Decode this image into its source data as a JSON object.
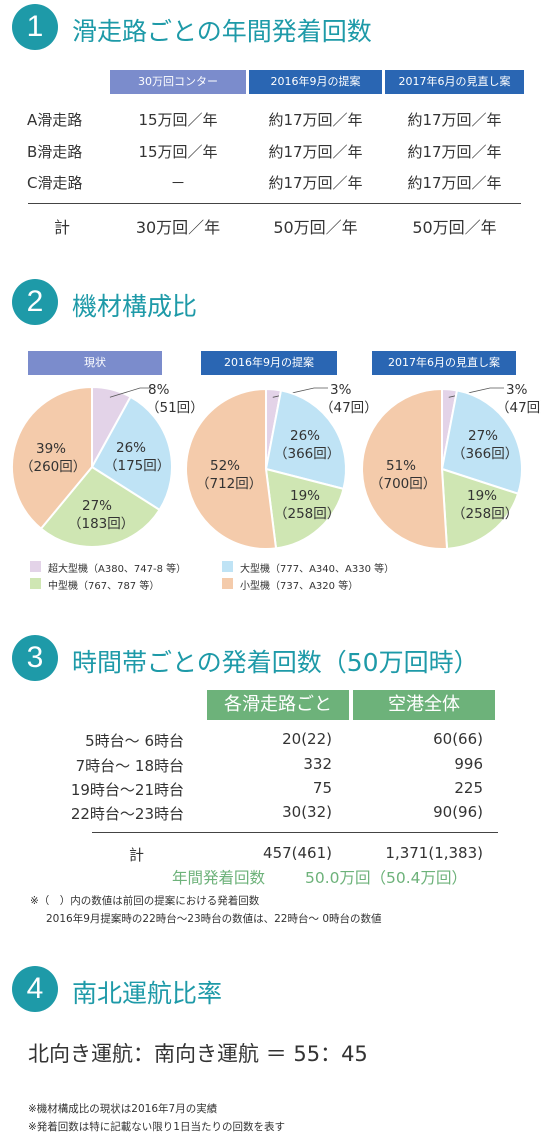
{
  "section1": {
    "number": "1",
    "title": "滑走路ごとの年間発着回数",
    "headers": [
      "30万回コンター",
      "2016年9月の提案",
      "2017年6月の見直し案"
    ],
    "rows": [
      {
        "label": "A滑走路",
        "values": [
          "15万回／年",
          "約17万回／年",
          "約17万回／年"
        ]
      },
      {
        "label": "B滑走路",
        "values": [
          "15万回／年",
          "約17万回／年",
          "約17万回／年"
        ]
      },
      {
        "label": "C滑走路",
        "values": [
          "－",
          "約17万回／年",
          "約17万回／年"
        ]
      }
    ],
    "total": {
      "label": "計",
      "values": [
        "30万回／年",
        "50万回／年",
        "50万回／年"
      ]
    }
  },
  "section2": {
    "number": "2",
    "title": "機材構成比",
    "headers": [
      "現状",
      "2016年9月の提案",
      "2017年6月の見直し案"
    ],
    "legend": [
      {
        "label": "超大型機（A380、747-8 等）",
        "color": "#e3d3e8"
      },
      {
        "label": "大型機（777、A340、A330 等）",
        "color": "#bfe3f5"
      },
      {
        "label": "中型機（767、787 等）",
        "color": "#cfe6b3"
      },
      {
        "label": "小型機（737、A320 等）",
        "color": "#f4cbab"
      }
    ]
  },
  "chart_data": [
    {
      "type": "pie",
      "title": "現状",
      "categories": [
        "超大型機",
        "大型機",
        "中型機",
        "小型機"
      ],
      "values": [
        8,
        26,
        27,
        39
      ],
      "counts": [
        "51回",
        "175回",
        "183回",
        "260回"
      ],
      "labels": [
        "8%",
        "26%",
        "27%",
        "39%"
      ]
    },
    {
      "type": "pie",
      "title": "2016年9月の提案",
      "categories": [
        "超大型機",
        "大型機",
        "中型機",
        "小型機"
      ],
      "values": [
        3,
        26,
        19,
        52
      ],
      "counts": [
        "47回",
        "366回",
        "258回",
        "712回"
      ],
      "labels": [
        "3%",
        "26%",
        "19%",
        "52%"
      ]
    },
    {
      "type": "pie",
      "title": "2017年6月の見直し案",
      "categories": [
        "超大型機",
        "大型機",
        "中型機",
        "小型機"
      ],
      "values": [
        3,
        27,
        19,
        51
      ],
      "counts": [
        "47回",
        "366回",
        "258回",
        "700回"
      ],
      "labels": [
        "3%",
        "27%",
        "19%",
        "51%"
      ]
    }
  ],
  "section3": {
    "number": "3",
    "title": "時間帯ごとの発着回数（50万回時）",
    "headers": [
      "各滑走路ごと",
      "空港全体"
    ],
    "rows": [
      {
        "label": "5時台～ 6時台",
        "values": [
          "20(22)",
          "60(66)"
        ]
      },
      {
        "label": "7時台～ 18時台",
        "values": [
          "332",
          "996"
        ]
      },
      {
        "label": "19時台～21時台",
        "values": [
          "75",
          "225"
        ]
      },
      {
        "label": "22時台～23時台",
        "values": [
          "30(32)",
          "90(96)"
        ]
      }
    ],
    "total": {
      "label": "計",
      "values": [
        "457(461)",
        "1,371(1,383)"
      ]
    },
    "annual_label": "年間発着回数",
    "annual_value": "50.0万回（50.4万回）",
    "note1": "※（　）内の数値は前回の提案における発着回数",
    "note2": "2016年9月提案時の22時台～23時台の数値は、22時台～ 0時台の数値"
  },
  "section4": {
    "number": "4",
    "title": "南北運航比率",
    "ratio_text": "北向き運航：南向き運航 ＝ 55：45"
  },
  "footnotes": [
    "※機材構成比の現状は2016年7月の実績",
    "※発着回数は特に記載ない限り1日当たりの回数を表す"
  ],
  "colors": {
    "teal": "#1e9aa8",
    "header_purple": "#7b8ccc",
    "header_blue": "#2a66b3",
    "header_green": "#6db27a",
    "super": "#e3d3e8",
    "large": "#bfe3f5",
    "medium": "#cfe6b3",
    "small": "#f4cbab"
  }
}
